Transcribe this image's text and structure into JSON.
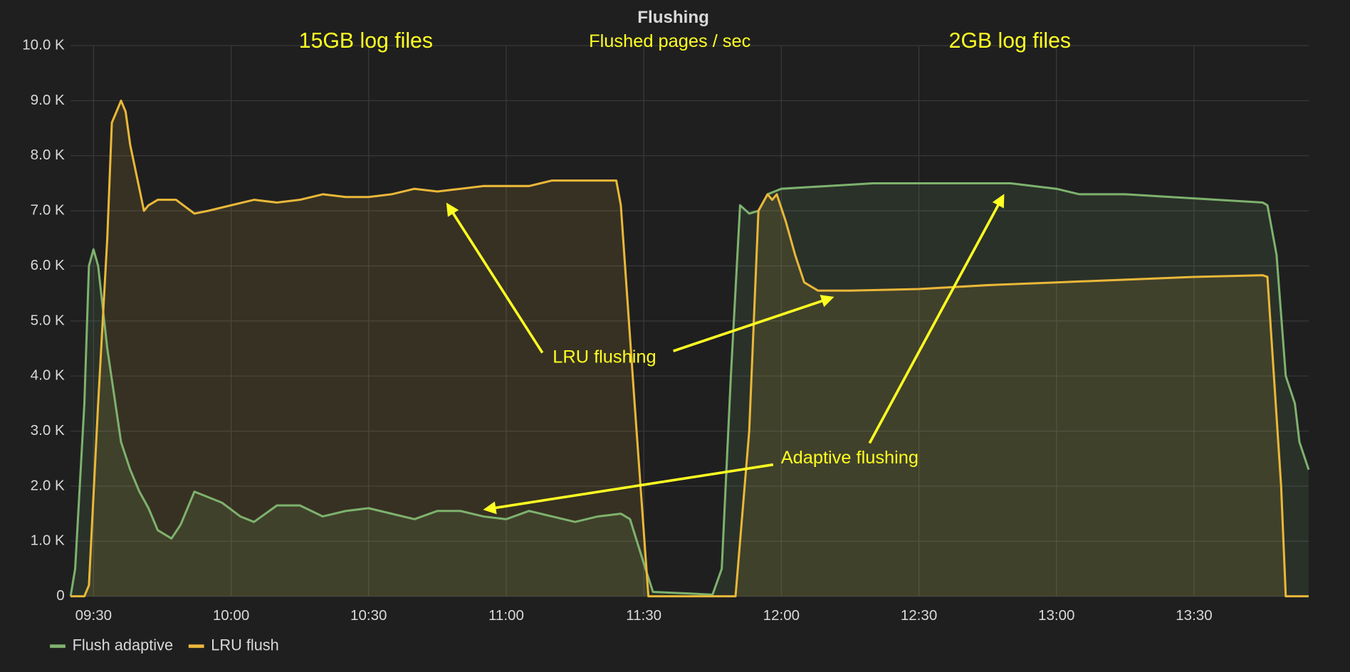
{
  "chart_data": {
    "type": "line",
    "title": "Flushing",
    "annotations": [
      "15GB log files",
      "Flushed pages / sec",
      "2GB log files",
      "LRU flushing",
      "Adaptive flushing"
    ],
    "xlim": [
      "09:25",
      "13:55"
    ],
    "xticks": [
      "09:30",
      "10:00",
      "10:30",
      "11:00",
      "11:30",
      "12:00",
      "12:30",
      "13:00",
      "13:30"
    ],
    "ylim": [
      0,
      10000
    ],
    "yticks": [
      0,
      {
        "value": 1000,
        "label": "1.0 K"
      },
      {
        "value": 2000,
        "label": "2.0 K"
      },
      {
        "value": 3000,
        "label": "3.0 K"
      },
      {
        "value": 4000,
        "label": "4.0 K"
      },
      {
        "value": 5000,
        "label": "5.0 K"
      },
      {
        "value": 6000,
        "label": "6.0 K"
      },
      {
        "value": 7000,
        "label": "7.0 K"
      },
      {
        "value": 8000,
        "label": "8.0 K"
      },
      {
        "value": 9000,
        "label": "9.0 K"
      },
      {
        "value": 10000,
        "label": "10.0 K"
      }
    ],
    "grid": true,
    "fill": true,
    "series": [
      {
        "name": "Flush adaptive",
        "color": "#7eb26d",
        "x": [
          "09:25",
          "09:26",
          "09:28",
          "09:29",
          "09:30",
          "09:31",
          "09:33",
          "09:36",
          "09:38",
          "09:40",
          "09:42",
          "09:44",
          "09:47",
          "09:49",
          "09:52",
          "09:55",
          "09:58",
          "10:02",
          "10:05",
          "10:10",
          "10:15",
          "10:20",
          "10:25",
          "10:30",
          "10:35",
          "10:40",
          "10:45",
          "10:50",
          "10:55",
          "11:00",
          "11:05",
          "11:10",
          "11:15",
          "11:20",
          "11:25",
          "11:27",
          "11:30",
          "11:32",
          "11:40",
          "11:45",
          "11:47",
          "11:49",
          "11:51",
          "11:53",
          "11:55",
          "11:57",
          "12:00",
          "12:10",
          "12:20",
          "12:30",
          "12:40",
          "12:50",
          "12:55",
          "13:00",
          "13:05",
          "13:15",
          "13:25",
          "13:35",
          "13:45",
          "13:46",
          "13:48",
          "13:50",
          "13:52",
          "13:53",
          "13:55"
        ],
        "values": [
          0,
          500,
          3500,
          6000,
          6300,
          6000,
          4500,
          2800,
          2300,
          1900,
          1600,
          1200,
          1050,
          1300,
          1900,
          1800,
          1700,
          1450,
          1350,
          1650,
          1650,
          1450,
          1550,
          1600,
          1500,
          1400,
          1550,
          1550,
          1450,
          1400,
          1550,
          1450,
          1350,
          1450,
          1500,
          1400,
          600,
          80,
          50,
          30,
          500,
          4000,
          7100,
          6950,
          7000,
          7300,
          7400,
          7450,
          7500,
          7500,
          7500,
          7500,
          7450,
          7400,
          7300,
          7300,
          7250,
          7200,
          7150,
          7100,
          6200,
          4000,
          3500,
          2800,
          2300
        ]
      },
      {
        "name": "LRU flush",
        "color": "#eab839",
        "x": [
          "09:25",
          "09:28",
          "09:29",
          "09:31",
          "09:33",
          "09:34",
          "09:35",
          "09:36",
          "09:37",
          "09:38",
          "09:40",
          "09:41",
          "09:42",
          "09:44",
          "09:48",
          "09:52",
          "09:55",
          "10:00",
          "10:05",
          "10:10",
          "10:15",
          "10:20",
          "10:25",
          "10:30",
          "10:35",
          "10:40",
          "10:45",
          "10:50",
          "10:55",
          "11:00",
          "11:05",
          "11:10",
          "11:15",
          "11:20",
          "11:24",
          "11:25",
          "11:28",
          "11:31",
          "11:50",
          "11:53",
          "11:55",
          "11:57",
          "11:58",
          "11:59",
          "12:01",
          "12:03",
          "12:05",
          "12:08",
          "12:15",
          "12:30",
          "12:45",
          "13:00",
          "13:15",
          "13:30",
          "13:45",
          "13:46",
          "13:49",
          "13:50",
          "13:55"
        ],
        "values": [
          0,
          0,
          200,
          3500,
          6500,
          8600,
          8800,
          9000,
          8800,
          8200,
          7400,
          7000,
          7100,
          7200,
          7200,
          6950,
          7000,
          7100,
          7200,
          7150,
          7200,
          7300,
          7250,
          7250,
          7300,
          7400,
          7350,
          7400,
          7450,
          7450,
          7450,
          7550,
          7550,
          7550,
          7550,
          7100,
          3500,
          0,
          0,
          3000,
          7000,
          7300,
          7200,
          7300,
          6800,
          6200,
          5700,
          5550,
          5550,
          5580,
          5650,
          5700,
          5750,
          5800,
          5830,
          5800,
          2000,
          0,
          0
        ]
      }
    ]
  }
}
